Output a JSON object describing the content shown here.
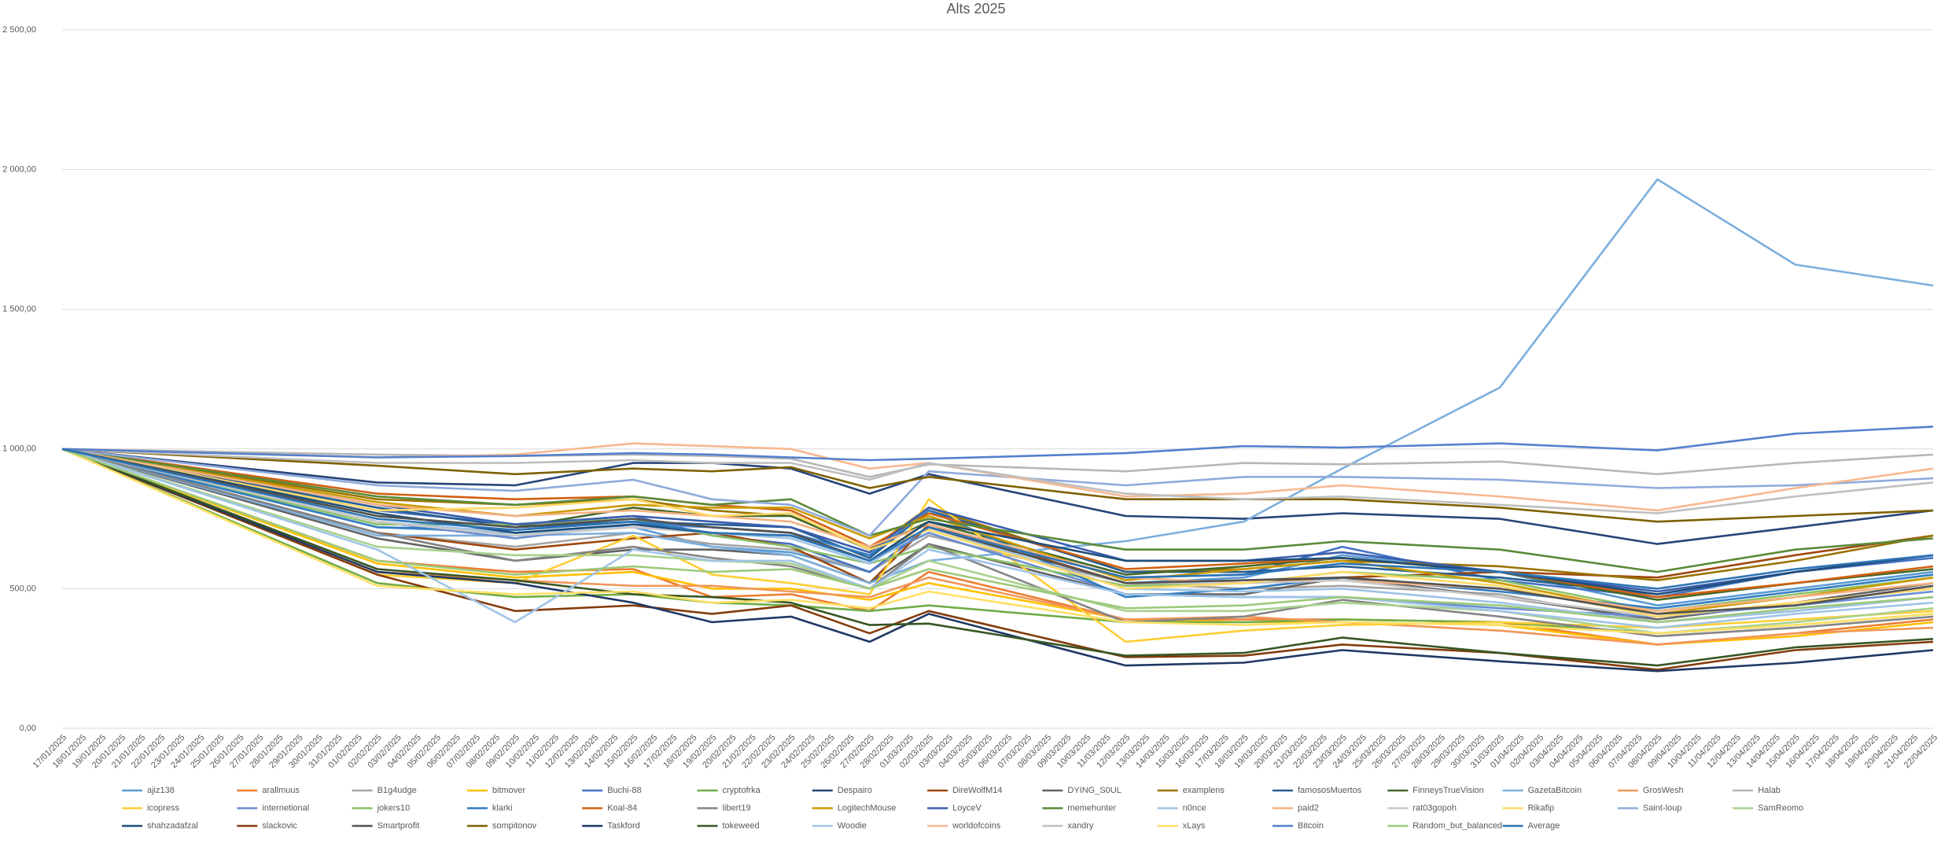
{
  "chart_data": {
    "type": "line",
    "title": "Alts 2025",
    "x": [
      "17/01/2025",
      "02/02/2025",
      "09/02/2025",
      "15/02/2025",
      "19/02/2025",
      "23/02/2025",
      "27/02/2025",
      "02/03/2025",
      "12/03/2025",
      "18/03/2025",
      "23/03/2025",
      "31/03/2025",
      "08/04/2025",
      "15/04/2025",
      "22/04/2025"
    ],
    "xlim": [
      "17/01/2025",
      "22/04/2025"
    ],
    "xticks": [
      "17/01/2025",
      "18/01/2025",
      "19/01/2025",
      "20/01/2025",
      "21/01/2025",
      "22/01/2025",
      "23/01/2025",
      "24/01/2025",
      "25/01/2025",
      "26/01/2025",
      "27/01/2025",
      "28/01/2025",
      "29/01/2025",
      "30/01/2025",
      "31/01/2025",
      "01/02/2025",
      "02/02/2025",
      "03/02/2025",
      "04/02/2025",
      "05/02/2025",
      "06/02/2025",
      "07/02/2025",
      "08/02/2025",
      "09/02/2025",
      "10/02/2025",
      "11/02/2025",
      "12/02/2025",
      "13/02/2025",
      "14/02/2025",
      "15/02/2025",
      "16/02/2025",
      "17/02/2025",
      "18/02/2025",
      "19/02/2025",
      "20/02/2025",
      "21/02/2025",
      "22/02/2025",
      "23/02/2025",
      "24/02/2025",
      "25/02/2025",
      "26/02/2025",
      "27/02/2025",
      "28/02/2025",
      "01/03/2025",
      "02/03/2025",
      "03/03/2025",
      "04/03/2025",
      "05/03/2025",
      "06/03/2025",
      "07/03/2025",
      "08/03/2025",
      "09/03/2025",
      "10/03/2025",
      "11/03/2025",
      "12/03/2025",
      "13/03/2025",
      "14/03/2025",
      "15/03/2025",
      "16/03/2025",
      "17/03/2025",
      "18/03/2025",
      "19/03/2025",
      "20/03/2025",
      "21/03/2025",
      "22/03/2025",
      "23/03/2025",
      "24/03/2025",
      "25/03/2025",
      "26/03/2025",
      "27/03/2025",
      "28/03/2025",
      "29/03/2025",
      "30/03/2025",
      "31/03/2025",
      "01/04/2025",
      "02/04/2025",
      "03/04/2025",
      "04/04/2025",
      "05/04/2025",
      "06/04/2025",
      "07/04/2025",
      "08/04/2025",
      "09/04/2025",
      "10/04/2025",
      "11/04/2025",
      "12/04/2025",
      "13/04/2025",
      "14/04/2025",
      "15/04/2025",
      "16/04/2025",
      "17/04/2025",
      "18/04/2025",
      "19/04/2025",
      "20/04/2025",
      "21/04/2025",
      "22/04/2025"
    ],
    "ylim": [
      0,
      2500
    ],
    "yticks": [
      {
        "value": 0,
        "label": "0,00"
      },
      {
        "value": 500,
        "label": "500,00"
      },
      {
        "value": 1000,
        "label": "1 000,00"
      },
      {
        "value": 1500,
        "label": "1 500,00"
      },
      {
        "value": 2000,
        "label": "2 000,00"
      },
      {
        "value": 2500,
        "label": "2 500,00"
      }
    ],
    "grid": true,
    "legend": "bottom",
    "series": [
      {
        "name": "ajiz138",
        "color": "#5B9BD5",
        "values": [
          1000,
          720,
          700,
          720,
          650,
          630,
          560,
          720,
          520,
          540,
          620,
          560,
          440,
          500,
          560
        ]
      },
      {
        "name": "arallmuus",
        "color": "#ED7D31",
        "values": [
          1000,
          600,
          560,
          570,
          470,
          480,
          420,
          560,
          390,
          390,
          390,
          380,
          300,
          340,
          390
        ]
      },
      {
        "name": "B1g4udge",
        "color": "#A5A5A5",
        "values": [
          1000,
          700,
          650,
          700,
          660,
          640,
          560,
          690,
          520,
          500,
          510,
          480,
          380,
          420,
          470
        ]
      },
      {
        "name": "bitmover",
        "color": "#FFC000",
        "values": [
          1000,
          590,
          540,
          560,
          500,
          500,
          460,
          520,
          390,
          380,
          380,
          370,
          300,
          330,
          380
        ]
      },
      {
        "name": "Buchi-88",
        "color": "#4472C4",
        "values": [
          1000,
          780,
          730,
          760,
          690,
          660,
          560,
          720,
          540,
          550,
          650,
          530,
          470,
          560,
          610
        ]
      },
      {
        "name": "cryptofrka",
        "color": "#70AD47",
        "values": [
          1000,
          520,
          470,
          480,
          450,
          440,
          420,
          440,
          380,
          380,
          390,
          380,
          340,
          370,
          410
        ]
      },
      {
        "name": "Despairo",
        "color": "#264478",
        "values": [
          1000,
          880,
          870,
          950,
          950,
          930,
          840,
          910,
          760,
          750,
          770,
          750,
          660,
          720,
          780
        ]
      },
      {
        "name": "DireWolfM14",
        "color": "#9E480E",
        "values": [
          1000,
          700,
          640,
          680,
          700,
          650,
          520,
          730,
          520,
          520,
          540,
          560,
          540,
          620,
          690
        ]
      },
      {
        "name": "DYING_S0UL",
        "color": "#636363",
        "values": [
          1000,
          680,
          600,
          640,
          640,
          620,
          520,
          660,
          480,
          480,
          540,
          470,
          390,
          450,
          520
        ]
      },
      {
        "name": "examplens",
        "color": "#997300",
        "values": [
          1000,
          820,
          800,
          820,
          780,
          760,
          640,
          790,
          560,
          570,
          600,
          580,
          530,
          600,
          690
        ]
      },
      {
        "name": "famososMuertos",
        "color": "#255E91",
        "values": [
          1000,
          790,
          720,
          740,
          730,
          720,
          610,
          780,
          560,
          560,
          580,
          540,
          480,
          560,
          620
        ]
      },
      {
        "name": "FinneysTrueVision",
        "color": "#43682B",
        "values": [
          1000,
          760,
          720,
          790,
          760,
          760,
          640,
          740,
          550,
          580,
          610,
          560,
          460,
          520,
          570
        ]
      },
      {
        "name": "GazetaBitcoin",
        "color": "#7CAFDD",
        "values": [
          1000,
          690,
          690,
          700,
          650,
          620,
          520,
          600,
          670,
          740,
          930,
          1220,
          1965,
          1660,
          1585
        ]
      },
      {
        "name": "GrosWesh",
        "color": "#F1975A",
        "values": [
          1000,
          560,
          530,
          510,
          510,
          490,
          470,
          540,
          390,
          400,
          380,
          350,
          300,
          340,
          360
        ]
      },
      {
        "name": "Halab",
        "color": "#B7B7B7",
        "values": [
          1000,
          980,
          975,
          980,
          975,
          965,
          900,
          945,
          920,
          950,
          945,
          955,
          910,
          950,
          980
        ]
      },
      {
        "name": "icopress",
        "color": "#FFCD33",
        "values": [
          1000,
          550,
          520,
          690,
          550,
          520,
          480,
          820,
          310,
          350,
          370,
          380,
          360,
          390,
          420
        ]
      },
      {
        "name": "internetional",
        "color": "#698ED0",
        "values": [
          1000,
          740,
          680,
          730,
          720,
          700,
          600,
          700,
          480,
          470,
          470,
          430,
          400,
          440,
          490
        ]
      },
      {
        "name": "jokers10",
        "color": "#8CC168",
        "values": [
          1000,
          730,
          730,
          750,
          690,
          650,
          590,
          650,
          510,
          520,
          560,
          530,
          420,
          480,
          540
        ]
      },
      {
        "name": "klarki",
        "color": "#327DC2",
        "values": [
          1000,
          720,
          710,
          740,
          720,
          700,
          620,
          780,
          470,
          500,
          540,
          490,
          430,
          490,
          550
        ]
      },
      {
        "name": "Koal-84",
        "color": "#D26012",
        "values": [
          1000,
          840,
          820,
          830,
          800,
          780,
          650,
          770,
          570,
          590,
          610,
          560,
          470,
          520,
          580
        ]
      },
      {
        "name": "libert19",
        "color": "#848484",
        "values": [
          1000,
          700,
          600,
          650,
          610,
          580,
          500,
          660,
          380,
          400,
          460,
          400,
          330,
          360,
          400
        ]
      },
      {
        "name": "LogitechMouse",
        "color": "#CC9A00",
        "values": [
          1000,
          810,
          760,
          800,
          790,
          790,
          680,
          760,
          530,
          570,
          600,
          520,
          410,
          470,
          540
        ]
      },
      {
        "name": "LoyceV",
        "color": "#3A5DAE",
        "values": [
          1000,
          800,
          730,
          760,
          740,
          720,
          630,
          790,
          600,
          600,
          630,
          560,
          490,
          560,
          620
        ]
      },
      {
        "name": "memehunter",
        "color": "#5A8A39",
        "values": [
          1000,
          830,
          800,
          830,
          800,
          820,
          690,
          750,
          640,
          640,
          670,
          640,
          560,
          640,
          680
        ]
      },
      {
        "name": "n0nce",
        "color": "#9DC3E6",
        "values": [
          1000,
          740,
          700,
          720,
          700,
          680,
          590,
          720,
          500,
          490,
          500,
          450,
          380,
          420,
          470
        ]
      },
      {
        "name": "paid2",
        "color": "#F4B183",
        "values": [
          1000,
          800,
          760,
          780,
          760,
          740,
          650,
          730,
          540,
          520,
          530,
          500,
          420,
          470,
          520
        ]
      },
      {
        "name": "rat03gopoh",
        "color": "#C9C9C9",
        "values": [
          1000,
          740,
          690,
          720,
          700,
          690,
          600,
          720,
          520,
          520,
          530,
          470,
          400,
          450,
          500
        ]
      },
      {
        "name": "Rikafip",
        "color": "#FFD966",
        "values": [
          1000,
          780,
          790,
          820,
          760,
          770,
          640,
          710,
          500,
          520,
          560,
          510,
          400,
          450,
          500
        ]
      },
      {
        "name": "Saint-loup",
        "color": "#8FAADC",
        "values": [
          1000,
          870,
          850,
          890,
          820,
          800,
          690,
          920,
          870,
          900,
          900,
          890,
          860,
          870,
          895
        ]
      },
      {
        "name": "SamReomo",
        "color": "#A9D18E",
        "values": [
          1000,
          650,
          620,
          620,
          600,
          590,
          500,
          600,
          420,
          420,
          450,
          420,
          340,
          380,
          430
        ]
      },
      {
        "name": "shahzadafzal",
        "color": "#1F4E79",
        "values": [
          1000,
          770,
          700,
          730,
          700,
          690,
          600,
          740,
          600,
          600,
          610,
          560,
          480,
          560,
          620
        ]
      },
      {
        "name": "slackovic",
        "color": "#843C0C",
        "values": [
          1000,
          550,
          420,
          440,
          410,
          440,
          340,
          420,
          255,
          260,
          300,
          270,
          210,
          280,
          310
        ]
      },
      {
        "name": "Smartprofit",
        "color": "#525252",
        "values": [
          1000,
          760,
          720,
          750,
          720,
          700,
          600,
          720,
          520,
          530,
          540,
          500,
          410,
          440,
          510
        ]
      },
      {
        "name": "sompitonov",
        "color": "#7F6000",
        "values": [
          1000,
          940,
          910,
          930,
          920,
          935,
          860,
          900,
          820,
          820,
          820,
          790,
          740,
          760,
          780
        ]
      },
      {
        "name": "Taskford",
        "color": "#203864",
        "values": [
          1000,
          560,
          520,
          450,
          380,
          400,
          310,
          410,
          225,
          235,
          280,
          240,
          205,
          235,
          280
        ]
      },
      {
        "name": "tokeweed",
        "color": "#375623",
        "values": [
          1000,
          570,
          530,
          480,
          470,
          450,
          370,
          375,
          260,
          270,
          325,
          270,
          225,
          290,
          320
        ]
      },
      {
        "name": "Woodie",
        "color": "#A0C4E8",
        "values": [
          1000,
          640,
          380,
          640,
          600,
          600,
          500,
          640,
          480,
          470,
          470,
          420,
          360,
          410,
          450
        ]
      },
      {
        "name": "worldofcoins",
        "color": "#F8B890",
        "values": [
          1000,
          970,
          980,
          1020,
          1010,
          1000,
          930,
          950,
          830,
          840,
          870,
          830,
          780,
          860,
          930
        ]
      },
      {
        "name": "xandry",
        "color": "#BFBFBF",
        "values": [
          1000,
          950,
          950,
          960,
          950,
          950,
          890,
          950,
          840,
          820,
          830,
          800,
          770,
          830,
          880
        ]
      },
      {
        "name": "xLays",
        "color": "#FFE066",
        "values": [
          1000,
          510,
          480,
          490,
          450,
          460,
          430,
          490,
          380,
          370,
          380,
          370,
          340,
          370,
          410
        ]
      },
      {
        "name": "Bitcoin",
        "color": "#5580CC",
        "values": [
          1000,
          970,
          975,
          985,
          980,
          970,
          960,
          965,
          985,
          1010,
          1005,
          1020,
          995,
          1055,
          1080
        ]
      },
      {
        "name": "Random_but_balanced",
        "color": "#9DC97A",
        "values": [
          1000,
          600,
          550,
          580,
          560,
          570,
          500,
          570,
          430,
          440,
          470,
          440,
          380,
          430,
          470
        ]
      },
      {
        "name": "Average",
        "color": "#2E75B6",
        "values": [
          1000,
          750,
          710,
          740,
          700,
          690,
          600,
          720,
          540,
          550,
          590,
          560,
          500,
          570,
          620
        ]
      }
    ]
  }
}
